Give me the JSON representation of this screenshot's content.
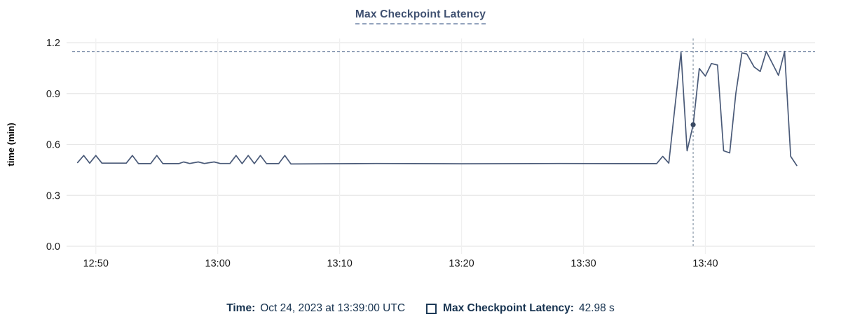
{
  "title": "Max Checkpoint Latency",
  "legend": {
    "time_label": "Time:",
    "time_value": "Oct 24, 2023 at 13:39:00 UTC",
    "series_label": "Max Checkpoint Latency:",
    "series_value": "42.98 s"
  },
  "colors": {
    "title_text": "#3f5070",
    "legend_text": "#16324f",
    "series_line": "#4a5a78",
    "max_reference_dash": "#8494ae",
    "cursor_dash": "#9aa6b4",
    "cursor_dot": "#3a4a63",
    "grid_horizontal": "#e7e7e7",
    "grid_vertical": "#f0f0f0",
    "tick_text": "#1a1a1a",
    "axis_title_text": "#000000"
  },
  "chart_data": {
    "type": "line",
    "title": "Max Checkpoint Latency",
    "xlabel": "",
    "ylabel": "time (min)",
    "ylim": [
      0,
      1.2
    ],
    "yticks": [
      {
        "value": 0.0,
        "label": "0.0"
      },
      {
        "value": 0.3,
        "label": "0.3"
      },
      {
        "value": 0.6,
        "label": "0.6"
      },
      {
        "value": 0.9,
        "label": "0.9"
      },
      {
        "value": 1.2,
        "label": "1.2"
      }
    ],
    "x_unit": "minutes after 12:48 UTC",
    "xlim": [
      -0.4,
      61.0
    ],
    "xticks": [
      {
        "t": 2,
        "label": "12:50"
      },
      {
        "t": 12,
        "label": "13:00"
      },
      {
        "t": 22,
        "label": "13:10"
      },
      {
        "t": 32,
        "label": "13:20"
      },
      {
        "t": 42,
        "label": "13:30"
      },
      {
        "t": 52,
        "label": "13:40"
      }
    ],
    "grid": true,
    "legend_position": "bottom-center",
    "max_reference_line": 1.148,
    "cursor": {
      "t": 51,
      "time_label": "13:39:00",
      "value": 0.7163,
      "value_seconds_label": "42.98 s"
    },
    "series": [
      {
        "name": "Max Checkpoint Latency",
        "points": [
          [
            0.5,
            0.493
          ],
          [
            1.0,
            0.535
          ],
          [
            1.5,
            0.49
          ],
          [
            2.0,
            0.535
          ],
          [
            2.5,
            0.49
          ],
          [
            4.5,
            0.49
          ],
          [
            5.0,
            0.535
          ],
          [
            5.5,
            0.487
          ],
          [
            6.5,
            0.487
          ],
          [
            7.0,
            0.535
          ],
          [
            7.5,
            0.487
          ],
          [
            8.8,
            0.487
          ],
          [
            9.2,
            0.497
          ],
          [
            9.7,
            0.488
          ],
          [
            10.4,
            0.497
          ],
          [
            10.9,
            0.488
          ],
          [
            11.7,
            0.497
          ],
          [
            12.2,
            0.488
          ],
          [
            13.0,
            0.488
          ],
          [
            13.5,
            0.535
          ],
          [
            14.0,
            0.487
          ],
          [
            14.5,
            0.535
          ],
          [
            15.0,
            0.487
          ],
          [
            15.5,
            0.535
          ],
          [
            16.0,
            0.487
          ],
          [
            17.0,
            0.487
          ],
          [
            17.5,
            0.535
          ],
          [
            18.0,
            0.485
          ],
          [
            25.0,
            0.488
          ],
          [
            32.0,
            0.486
          ],
          [
            40.0,
            0.488
          ],
          [
            47.0,
            0.487
          ],
          [
            48.0,
            0.487
          ],
          [
            48.5,
            0.53
          ],
          [
            49.0,
            0.49
          ],
          [
            49.5,
            0.82
          ],
          [
            50.0,
            1.143
          ],
          [
            50.5,
            0.563
          ],
          [
            51.0,
            0.7163
          ],
          [
            51.5,
            1.048
          ],
          [
            52.0,
            1.003
          ],
          [
            52.5,
            1.077
          ],
          [
            53.0,
            1.068
          ],
          [
            53.5,
            0.563
          ],
          [
            54.0,
            0.55
          ],
          [
            54.5,
            0.9
          ],
          [
            55.0,
            1.14
          ],
          [
            55.4,
            1.133
          ],
          [
            56.0,
            1.057
          ],
          [
            56.5,
            1.03
          ],
          [
            57.0,
            1.148
          ],
          [
            58.0,
            1.007
          ],
          [
            58.5,
            1.148
          ],
          [
            59.0,
            0.53
          ],
          [
            59.5,
            0.476
          ]
        ]
      }
    ]
  }
}
